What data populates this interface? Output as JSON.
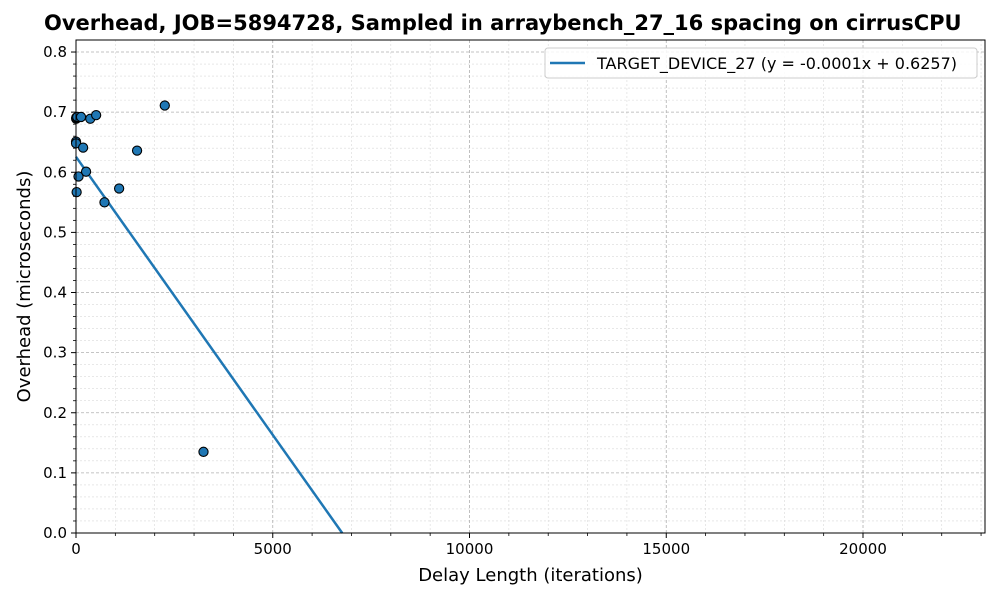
{
  "chart_data": {
    "type": "scatter",
    "title": "Overhead, JOB=5894728, Sampled in arraybench_27_16 spacing on cirrusCPU",
    "xlabel": "Delay Length (iterations)",
    "ylabel": "Overhead (microseconds)",
    "xlim": [
      0,
      23100
    ],
    "ylim": [
      0,
      0.82
    ],
    "x_ticks": [
      0,
      5000,
      10000,
      15000,
      20000
    ],
    "y_ticks": [
      0.0,
      0.1,
      0.2,
      0.3,
      0.4,
      0.5,
      0.6,
      0.7,
      0.8
    ],
    "grid": true,
    "legend_position": "top-right",
    "point_color": "#1f77b4",
    "line_color": "#1f77b4",
    "series": [
      {
        "name": "TARGET_DEVICE_27 (y = -0.0001x + 0.6257)",
        "points": [
          {
            "x": 1,
            "y": 0.651
          },
          {
            "x": 2,
            "y": 0.648
          },
          {
            "x": 4,
            "y": 0.689
          },
          {
            "x": 8,
            "y": 0.691
          },
          {
            "x": 16,
            "y": 0.567
          },
          {
            "x": 32,
            "y": 0.692
          },
          {
            "x": 64,
            "y": 0.593
          },
          {
            "x": 128,
            "y": 0.692
          },
          {
            "x": 181,
            "y": 0.641
          },
          {
            "x": 256,
            "y": 0.601
          },
          {
            "x": 362,
            "y": 0.689
          },
          {
            "x": 512,
            "y": 0.695
          },
          {
            "x": 724,
            "y": 0.55
          },
          {
            "x": 1096,
            "y": 0.573
          },
          {
            "x": 1552,
            "y": 0.636
          },
          {
            "x": 2256,
            "y": 0.711
          },
          {
            "x": 3240,
            "y": 0.135
          }
        ],
        "fit": {
          "slope": -9.25e-05,
          "intercept": 0.6257,
          "x_start": 0
        }
      }
    ]
  }
}
